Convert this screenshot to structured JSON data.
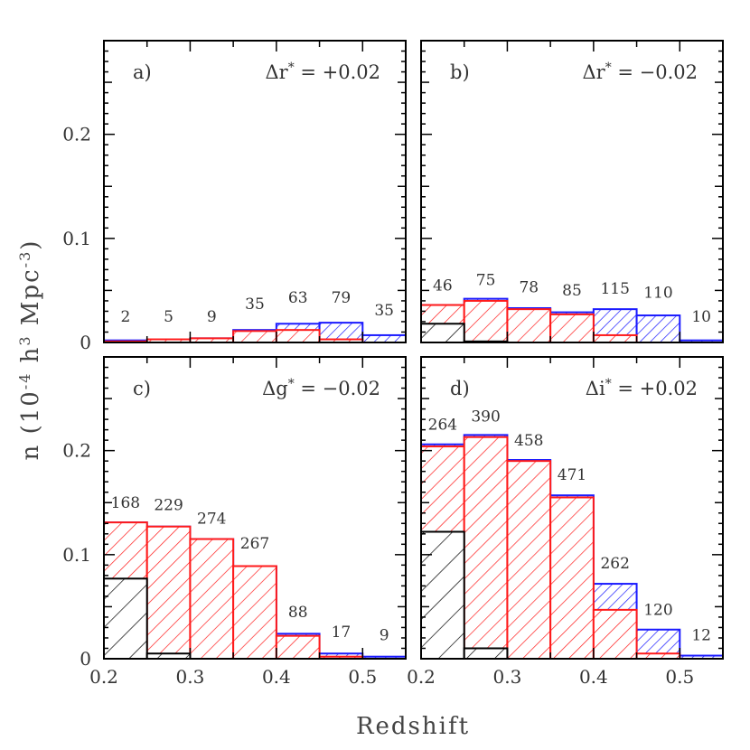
{
  "chart_data": {
    "type": "bar",
    "xlabel": "Redshift",
    "ylabel": "n (10",
    "ylabel_sup1": "-4",
    "ylabel_mid": " h",
    "ylabel_sup2": "3",
    "ylabel_mid2": " Mpc",
    "ylabel_sup3": "-3",
    "ylabel_end": ")",
    "xlim": [
      0.2,
      0.55
    ],
    "ylim": [
      0,
      0.29
    ],
    "x_ticks": [
      "0.2",
      "0.3",
      "0.4",
      "0.5"
    ],
    "y_ticks": [
      "0",
      "0.1",
      "0.2"
    ],
    "bin_edges": [
      0.2,
      0.25,
      0.3,
      0.35,
      0.4,
      0.45,
      0.5,
      0.55
    ],
    "colors": {
      "blue": "#1a1aff",
      "red": "#ff1a1a",
      "black": "#000000"
    },
    "panels": [
      {
        "tag": "a)",
        "shift_prefix": "Δr",
        "shift_value": " = +0.02",
        "blue": [
          0.002,
          0.002,
          0.004,
          0.012,
          0.018,
          0.019,
          0.007
        ],
        "red": [
          0.001,
          0.003,
          0.004,
          0.011,
          0.012,
          0.003,
          0.0
        ],
        "black": [
          0.0,
          0.0,
          0.0,
          0.0,
          0.0,
          0.0,
          0.0
        ],
        "counts": [
          "2",
          "5",
          "9",
          "35",
          "63",
          "79",
          "35"
        ],
        "count_y": [
          0.02,
          0.02,
          0.02,
          0.032,
          0.038,
          0.038,
          0.026
        ]
      },
      {
        "tag": "b)",
        "shift_prefix": "Δr",
        "shift_value": " = −0.02",
        "blue": [
          0.036,
          0.042,
          0.033,
          0.029,
          0.032,
          0.026,
          0.002
        ],
        "red": [
          0.036,
          0.04,
          0.032,
          0.027,
          0.007,
          0.0,
          0.0
        ],
        "black": [
          0.018,
          0.001,
          0.0,
          0.0,
          0.0,
          0.0,
          0.0
        ],
        "counts": [
          "46",
          "75",
          "78",
          "85",
          "115",
          "110",
          "10"
        ],
        "count_y": [
          0.05,
          0.055,
          0.048,
          0.045,
          0.047,
          0.043,
          0.02
        ]
      },
      {
        "tag": "c)",
        "shift_prefix": "Δg",
        "shift_value": " = −0.02",
        "blue": [
          0.131,
          0.127,
          0.115,
          0.089,
          0.024,
          0.005,
          0.002
        ],
        "red": [
          0.131,
          0.127,
          0.115,
          0.089,
          0.022,
          0.002,
          0.0
        ],
        "black": [
          0.077,
          0.005,
          0.0,
          0.0,
          0.0,
          0.0,
          0.0
        ],
        "counts": [
          "168",
          "229",
          "274",
          "267",
          "88",
          "17",
          "9"
        ],
        "count_y": [
          0.145,
          0.143,
          0.13,
          0.106,
          0.04,
          0.021,
          0.018
        ]
      },
      {
        "tag": "d)",
        "shift_prefix": "Δi",
        "shift_value": " = +0.02",
        "blue": [
          0.206,
          0.215,
          0.191,
          0.157,
          0.072,
          0.028,
          0.003
        ],
        "red": [
          0.204,
          0.213,
          0.19,
          0.155,
          0.047,
          0.005,
          0.0
        ],
        "black": [
          0.122,
          0.01,
          0.0,
          0.0,
          0.0,
          0.0,
          0.0
        ],
        "counts": [
          "264",
          "390",
          "458",
          "471",
          "262",
          "120",
          "12"
        ],
        "count_y": [
          0.22,
          0.228,
          0.205,
          0.172,
          0.087,
          0.042,
          0.018
        ]
      }
    ]
  }
}
